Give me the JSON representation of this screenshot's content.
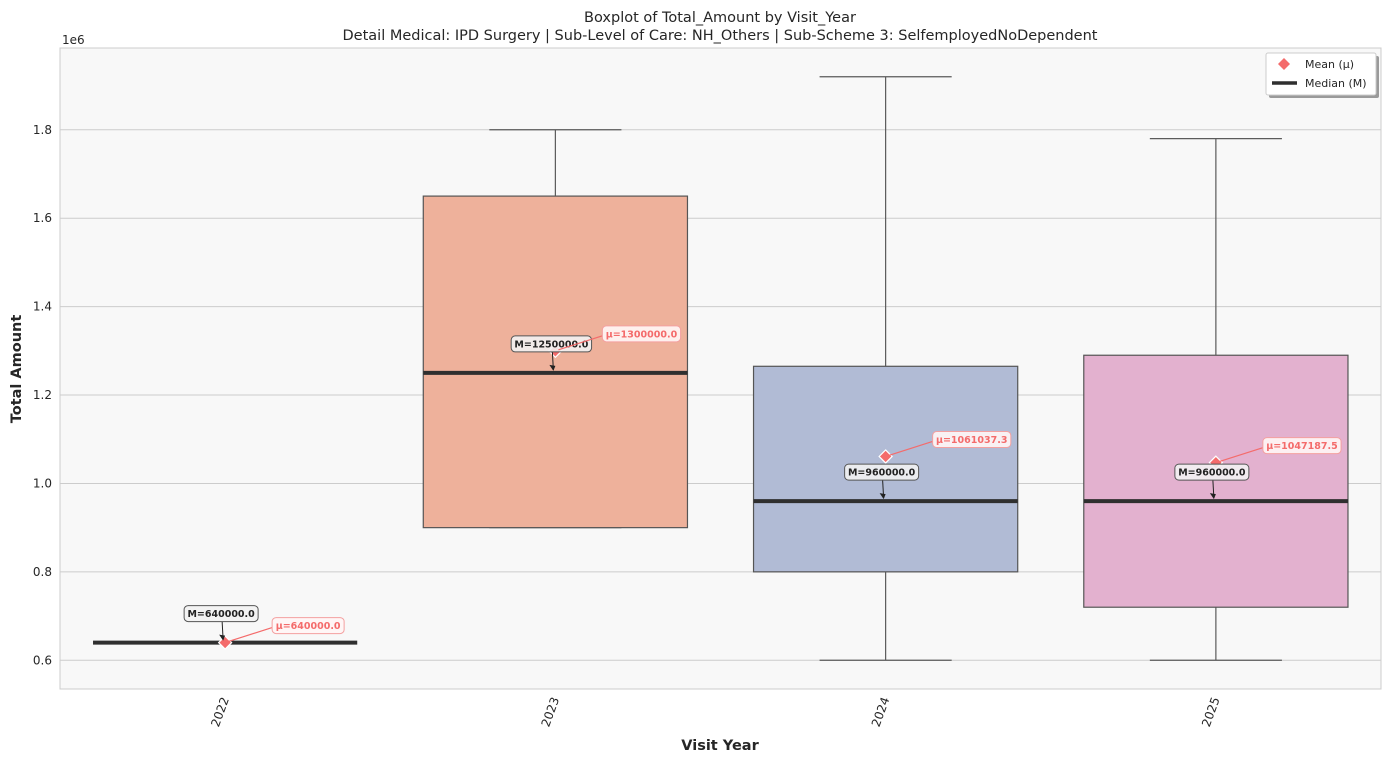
{
  "chart_data": {
    "type": "boxplot",
    "title": "Boxplot of Total_Amount by Visit_Year",
    "subtitle": "Detail Medical: IPD Surgery | Sub-Level of Care: NH_Others | Sub-Scheme 3: SelfemployedNoDependent",
    "xlabel": "Visit Year",
    "ylabel": "Total Amount",
    "y_offset_label": "1e6",
    "ylim": [
      0.535,
      1.985
    ],
    "yticks": [
      0.6,
      0.8,
      1.0,
      1.2,
      1.4,
      1.6,
      1.8
    ],
    "ytick_labels": [
      "0.6",
      "0.8",
      "1.0",
      "1.2",
      "1.4",
      "1.6",
      "1.8"
    ],
    "grid": true,
    "legend_position": "top-right",
    "legend": [
      {
        "label": "Mean (μ)",
        "marker": "diamond",
        "color": "#f46b6b"
      },
      {
        "label": "Median (M)",
        "marker": "line",
        "color": "#2f2f2f"
      }
    ],
    "categories": [
      "2022",
      "2023",
      "2024",
      "2025"
    ],
    "boxes": [
      {
        "category": "2022",
        "whisker_low": 0.64,
        "q1": 0.64,
        "median": 0.64,
        "q3": 0.64,
        "whisker_high": 0.64,
        "mean": 0.64,
        "color": "#66c2a5",
        "median_label": "M=640000.0",
        "mean_label": "μ=640000.0"
      },
      {
        "category": "2023",
        "whisker_low": 0.9,
        "q1": 0.9,
        "median": 1.25,
        "q3": 1.65,
        "whisker_high": 1.8,
        "mean": 1.3,
        "color": "#eeb19b",
        "median_label": "M=1250000.0",
        "mean_label": "μ=1300000.0"
      },
      {
        "category": "2024",
        "whisker_low": 0.6,
        "q1": 0.8,
        "median": 0.96,
        "q3": 1.265,
        "whisker_high": 1.92,
        "mean": 1.061,
        "color": "#b1bbd5",
        "median_label": "M=960000.0",
        "mean_label": "μ=1061037.3"
      },
      {
        "category": "2025",
        "whisker_low": 0.6,
        "q1": 0.72,
        "median": 0.96,
        "q3": 1.29,
        "whisker_high": 1.78,
        "mean": 1.047,
        "color": "#e3b1cf",
        "median_label": "M=960000.0",
        "mean_label": "μ=1047187.5"
      }
    ],
    "colors": {
      "background": "#f8f8f8",
      "grid": "#cccccc",
      "median": "#2f2f2f",
      "mean": "#f46b6b",
      "whisker": "#5a5a5a"
    }
  }
}
